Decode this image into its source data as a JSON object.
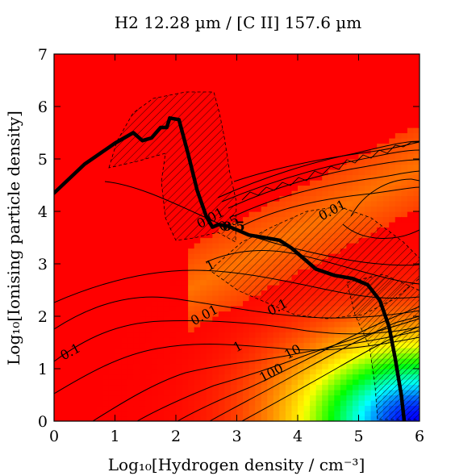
{
  "chart_data": {
    "type": "heatmap",
    "title": "H2 12.28 µm / [C II] 157.6 µm",
    "xlabel": "Log₁₀[Hydrogen density / cm⁻³]",
    "ylabel": "Log₁₀[Ionising particle density]",
    "xlim": [
      0,
      6
    ],
    "ylim": [
      0,
      7
    ],
    "x_ticks": [
      "0",
      "1",
      "2",
      "3",
      "4",
      "5",
      "6"
    ],
    "y_ticks": [
      "0",
      "1",
      "2",
      "3",
      "4",
      "5",
      "6",
      "7"
    ],
    "colormap": [
      "#0000ff",
      "#00ffff",
      "#00ff00",
      "#ffff00",
      "#ff8000",
      "#ff0000"
    ],
    "contour_labels": [
      {
        "text": "0.01",
        "x": 4.6,
        "y": 3.95
      },
      {
        "text": "0.01",
        "x": 2.6,
        "y": 3.8
      },
      {
        "text": "0.5",
        "x": 2.9,
        "y": 3.7
      },
      {
        "text": "1",
        "x": 2.6,
        "y": 2.9
      },
      {
        "text": "0.01",
        "x": 2.5,
        "y": 1.95
      },
      {
        "text": "0.1",
        "x": 3.7,
        "y": 2.1
      },
      {
        "text": "0.1",
        "x": 0.3,
        "y": 1.25
      },
      {
        "text": "1",
        "x": 3.05,
        "y": 1.35
      },
      {
        "text": "10",
        "x": 3.95,
        "y": 1.25
      },
      {
        "text": "100",
        "x": 3.6,
        "y": 0.85
      }
    ],
    "observed_ratio_curve": {
      "label": "0.5",
      "x": [
        0,
        0.5,
        1.0,
        1.3,
        1.45,
        1.6,
        1.75,
        1.85,
        1.9,
        2.05,
        2.2,
        2.35,
        2.5,
        2.6,
        2.7,
        2.85,
        3.0,
        3.2,
        3.45,
        3.7,
        3.9,
        4.1,
        4.3,
        4.6,
        4.9,
        5.15,
        5.35,
        5.5,
        5.6,
        5.7,
        5.75
      ],
      "y": [
        4.35,
        4.9,
        5.3,
        5.5,
        5.35,
        5.4,
        5.6,
        5.6,
        5.78,
        5.75,
        5.1,
        4.4,
        3.9,
        3.7,
        3.75,
        3.72,
        3.65,
        3.55,
        3.5,
        3.45,
        3.3,
        3.1,
        2.9,
        2.78,
        2.72,
        2.6,
        2.3,
        1.8,
        1.2,
        0.5,
        0.0
      ]
    }
  }
}
